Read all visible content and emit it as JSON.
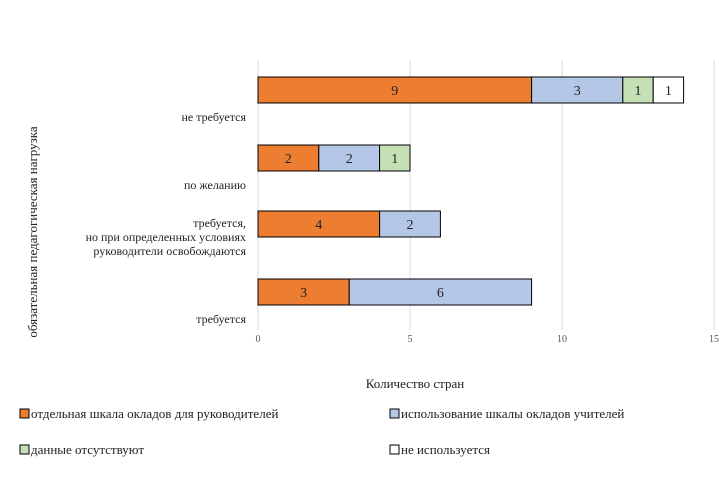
{
  "chart_data": {
    "type": "bar",
    "orientation": "horizontal",
    "stacked": true,
    "title": "",
    "xlabel": "Количество стран",
    "ylabel": "обязательная педагогическая нагрузка",
    "xlim": [
      0,
      15
    ],
    "xticks": [
      "0",
      "5",
      "10",
      "15"
    ],
    "grid": true,
    "legend_position": "bottom",
    "categories": [
      [
        "не требуется"
      ],
      [
        "по желанию"
      ],
      [
        "требуется,",
        "но при определенных условиях",
        "руководители освобождаются"
      ],
      [
        "требуется"
      ]
    ],
    "series": [
      {
        "name": "отдельная шкала окладов для руководителей",
        "color": "#ED7D31",
        "values": [
          9,
          2,
          4,
          3
        ]
      },
      {
        "name": "использование шкалы окладов учителей",
        "color": "#B4C7E7",
        "values": [
          3,
          2,
          2,
          6
        ]
      },
      {
        "name": "данные отсутствуют",
        "color": "#C5E0B4",
        "values": [
          1,
          1,
          null,
          null
        ]
      },
      {
        "name": "не используется",
        "color": "#FFFFFF",
        "values": [
          1,
          null,
          null,
          null
        ]
      }
    ]
  }
}
